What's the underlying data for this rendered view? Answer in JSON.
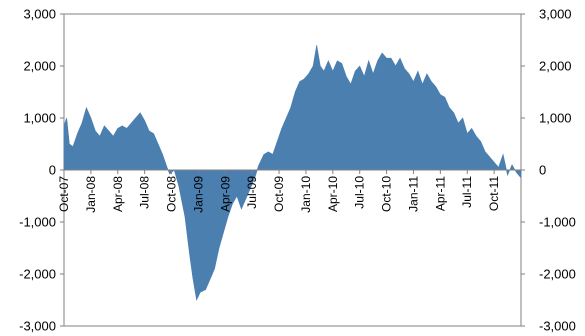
{
  "chart_data": {
    "type": "area",
    "title": "",
    "xlabel": "",
    "ylabel": "",
    "ylim": [
      -3000,
      3000
    ],
    "yticks": [
      -3000,
      -2000,
      -1000,
      0,
      1000,
      2000,
      3000
    ],
    "ytick_labels": [
      "-3,000",
      "-2,000",
      "-1,000",
      "0",
      "1,000",
      "2,000",
      "3,000"
    ],
    "y_axes": "left-and-right",
    "grid": false,
    "legend": "none",
    "x_categories": [
      "Oct-07",
      "Jan-08",
      "Apr-08",
      "Jul-08",
      "Oct-08",
      "Jan-09",
      "Apr-09",
      "Jul-09",
      "Oct-09",
      "Jan-10",
      "Apr-10",
      "Jul-10",
      "Oct-10",
      "Jan-11",
      "Apr-11",
      "Jul-11",
      "Oct-11"
    ],
    "x_range_months": [
      0,
      51
    ],
    "fill_color": "#4a7fb0",
    "series": [
      {
        "values": [
          [
            0,
            850
          ],
          [
            0.3,
            1000
          ],
          [
            0.6,
            500
          ],
          [
            1.0,
            450
          ],
          [
            1.5,
            700
          ],
          [
            2.0,
            900
          ],
          [
            2.5,
            1200
          ],
          [
            3.0,
            1000
          ],
          [
            3.5,
            750
          ],
          [
            4.0,
            650
          ],
          [
            4.5,
            850
          ],
          [
            5.0,
            750
          ],
          [
            5.5,
            650
          ],
          [
            6.0,
            800
          ],
          [
            6.5,
            850
          ],
          [
            7.0,
            800
          ],
          [
            7.5,
            900
          ],
          [
            8.0,
            1000
          ],
          [
            8.5,
            1100
          ],
          [
            9.0,
            950
          ],
          [
            9.5,
            750
          ],
          [
            10.0,
            700
          ],
          [
            10.5,
            500
          ],
          [
            11.0,
            300
          ],
          [
            11.5,
            50
          ],
          [
            11.8,
            -80
          ],
          [
            12.3,
            0
          ],
          [
            12.8,
            -300
          ],
          [
            13.5,
            -900
          ],
          [
            14.0,
            -1600
          ],
          [
            14.4,
            -2100
          ],
          [
            14.8,
            -2500
          ],
          [
            15.2,
            -2350
          ],
          [
            15.8,
            -2300
          ],
          [
            16.3,
            -2100
          ],
          [
            16.8,
            -1900
          ],
          [
            17.3,
            -1500
          ],
          [
            17.8,
            -1200
          ],
          [
            18.3,
            -900
          ],
          [
            18.8,
            -650
          ],
          [
            19.3,
            -500
          ],
          [
            19.8,
            -750
          ],
          [
            20.3,
            -550
          ],
          [
            20.8,
            -350
          ],
          [
            21.3,
            -150
          ],
          [
            21.7,
            80
          ],
          [
            22.3,
            300
          ],
          [
            22.8,
            350
          ],
          [
            23.3,
            300
          ],
          [
            23.8,
            550
          ],
          [
            24.3,
            800
          ],
          [
            24.8,
            1000
          ],
          [
            25.3,
            1200
          ],
          [
            25.8,
            1500
          ],
          [
            26.3,
            1700
          ],
          [
            26.8,
            1750
          ],
          [
            27.3,
            1850
          ],
          [
            27.8,
            2000
          ],
          [
            28.2,
            2400
          ],
          [
            28.6,
            2000
          ],
          [
            29.0,
            1900
          ],
          [
            29.5,
            2100
          ],
          [
            30.0,
            1900
          ],
          [
            30.5,
            2100
          ],
          [
            31.0,
            2050
          ],
          [
            31.5,
            1800
          ],
          [
            32.0,
            1650
          ],
          [
            32.5,
            1900
          ],
          [
            33.0,
            2000
          ],
          [
            33.5,
            1800
          ],
          [
            34.0,
            2100
          ],
          [
            34.5,
            1850
          ],
          [
            35.0,
            2100
          ],
          [
            35.5,
            2250
          ],
          [
            36.0,
            2150
          ],
          [
            36.5,
            2150
          ],
          [
            37.0,
            2000
          ],
          [
            37.5,
            2150
          ],
          [
            38.0,
            1950
          ],
          [
            38.5,
            1850
          ],
          [
            39.0,
            1700
          ],
          [
            39.5,
            1900
          ],
          [
            40.0,
            1650
          ],
          [
            40.5,
            1850
          ],
          [
            41.0,
            1700
          ],
          [
            41.5,
            1600
          ],
          [
            42.0,
            1450
          ],
          [
            42.5,
            1400
          ],
          [
            43.0,
            1200
          ],
          [
            43.5,
            1100
          ],
          [
            44.0,
            900
          ],
          [
            44.5,
            1000
          ],
          [
            45.0,
            700
          ],
          [
            45.5,
            800
          ],
          [
            46.0,
            650
          ],
          [
            46.5,
            550
          ],
          [
            47.0,
            350
          ],
          [
            47.5,
            250
          ],
          [
            48.0,
            150
          ],
          [
            48.5,
            50
          ],
          [
            49.0,
            300
          ],
          [
            49.5,
            -100
          ],
          [
            50.0,
            100
          ],
          [
            50.5,
            -50
          ],
          [
            51.0,
            -150
          ]
        ]
      }
    ]
  }
}
